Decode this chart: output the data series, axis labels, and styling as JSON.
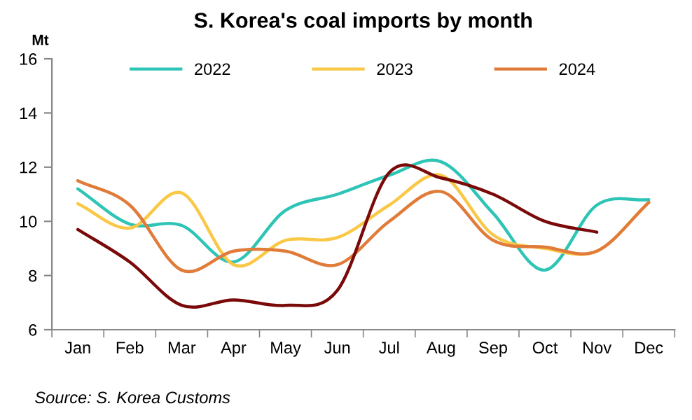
{
  "chart_data": {
    "type": "line",
    "title": "S. Korea's coal imports by month",
    "ylabel": "Mt",
    "categories": [
      "Jan",
      "Feb",
      "Mar",
      "Apr",
      "May",
      "Jun",
      "Jul",
      "Aug",
      "Sep",
      "Oct",
      "Nov",
      "Dec"
    ],
    "series": [
      {
        "name": "2022",
        "color": "#2ec4b6",
        "values": [
          11.2,
          9.9,
          9.85,
          8.5,
          10.4,
          11.0,
          11.7,
          12.2,
          10.3,
          8.2,
          10.6,
          10.8
        ]
      },
      {
        "name": "2023",
        "color": "#f9c846",
        "values": [
          10.65,
          9.75,
          11.05,
          8.4,
          9.3,
          9.4,
          10.6,
          11.7,
          9.5,
          9.0,
          8.9,
          10.7
        ]
      },
      {
        "name": "2024",
        "color": "#e07b39",
        "values": [
          11.5,
          10.6,
          8.2,
          8.9,
          8.9,
          8.4,
          10.0,
          11.1,
          9.3,
          9.05,
          8.9,
          10.7
        ]
      },
      {
        "color": "#7a0a0a",
        "values": [
          9.7,
          8.5,
          6.9,
          7.1,
          6.9,
          7.45,
          11.8,
          11.6,
          11.0,
          10.0,
          9.6,
          null
        ]
      }
    ],
    "ylim": [
      6,
      16
    ],
    "yticks": [
      6,
      8,
      10,
      12,
      14,
      16
    ],
    "grid": false,
    "legend": "top",
    "marker": "none",
    "line_style": "solid",
    "annotations": [
      "Source: S. Korea Customs"
    ]
  }
}
